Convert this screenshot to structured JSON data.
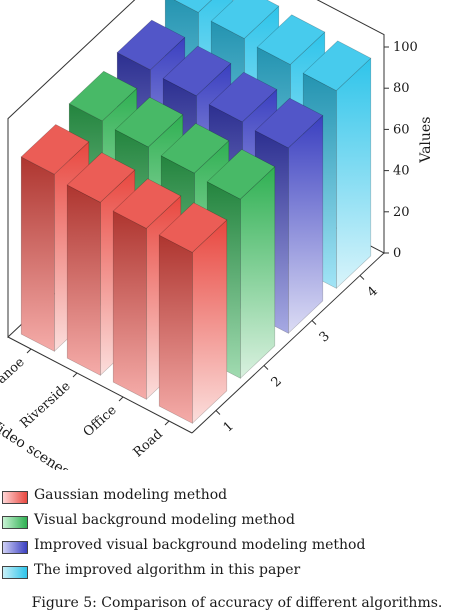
{
  "chart_data": {
    "type": "bar",
    "subtype": "3d-bar",
    "title": "",
    "categories_x": [
      "1",
      "2",
      "3",
      "4"
    ],
    "categories_y": [
      "Canoe",
      "Riverside",
      "Office",
      "Road"
    ],
    "series": [
      {
        "name": "Gaussian modeling method",
        "x": "1",
        "color": "#e8473f",
        "values": [
          86,
          84,
          83,
          83
        ]
      },
      {
        "name": "Visual background modeling method",
        "x": "2",
        "color": "#2fb052",
        "values": [
          90,
          89,
          88,
          87
        ]
      },
      {
        "name": "Improved visual background modeling method",
        "x": "3",
        "color": "#3a3fc0",
        "values": [
          93,
          92,
          91,
          90
        ]
      },
      {
        "name": "The improved algorithm in this paper",
        "x": "4",
        "color": "#2ec4ea",
        "values": [
          99,
          98,
          97,
          96
        ]
      }
    ],
    "xlabel": "",
    "ylabel": "Video scenes",
    "zlabel": "Values",
    "zlim": [
      0,
      100
    ],
    "zticks": [
      0,
      20,
      40,
      60,
      80,
      100
    ],
    "legend_position": "bottom"
  },
  "caption": "Figure 5: Comparison of accuracy of different algorithms."
}
